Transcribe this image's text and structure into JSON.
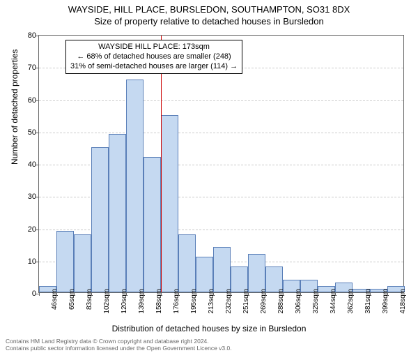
{
  "title_main": "WAYSIDE, HILL PLACE, BURSLEDON, SOUTHAMPTON, SO31 8DX",
  "title_sub": "Size of property relative to detached houses in Bursledon",
  "ylabel": "Number of detached properties",
  "xlabel": "Distribution of detached houses by size in Bursledon",
  "chart": {
    "type": "histogram",
    "ylim": [
      0,
      80
    ],
    "ytick_step": 10,
    "xticks": [
      "46sqm",
      "65sqm",
      "83sqm",
      "102sqm",
      "120sqm",
      "139sqm",
      "158sqm",
      "176sqm",
      "195sqm",
      "213sqm",
      "232sqm",
      "251sqm",
      "269sqm",
      "288sqm",
      "306sqm",
      "325sqm",
      "344sqm",
      "362sqm",
      "381sqm",
      "399sqm",
      "418sqm"
    ],
    "values": [
      2,
      19,
      18,
      45,
      49,
      66,
      42,
      55,
      18,
      11,
      14,
      8,
      12,
      8,
      4,
      4,
      2,
      3,
      1,
      1,
      2
    ],
    "bar_fill": "#c5d9f1",
    "bar_border": "#5a7fb8",
    "grid_color": "#999999",
    "background": "#ffffff",
    "marker_pos": 7,
    "marker_color": "#cc0000"
  },
  "annotation": {
    "line1": "WAYSIDE HILL PLACE: 173sqm",
    "line2": "← 68% of detached houses are smaller (248)",
    "line3": "31% of semi-detached houses are larger (114) →"
  },
  "footer": {
    "line1": "Contains HM Land Registry data © Crown copyright and database right 2024.",
    "line2": "Contains public sector information licensed under the Open Government Licence v3.0."
  }
}
